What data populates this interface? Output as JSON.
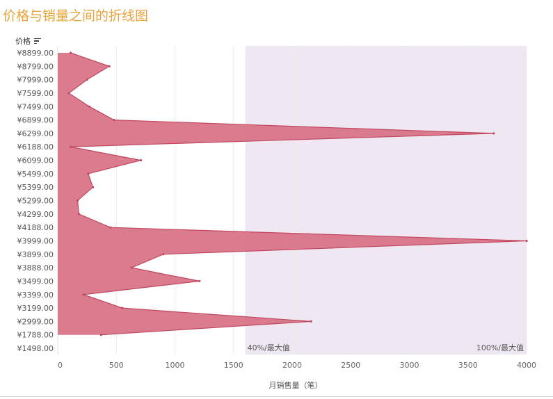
{
  "title": "价格与销量之间的折线图",
  "y_header": "价格",
  "x_axis_label": "月销售量（笔）",
  "colors": {
    "title": "#e8a33a",
    "area_fill": "#d87488",
    "area_line": "#c24760",
    "band": "#efe7f1",
    "grid": "#ececec"
  },
  "chart_data": {
    "type": "area",
    "orientation": "horizontal",
    "ylabel": "价格",
    "xlabel": "月销售量（笔）",
    "xlim": [
      0,
      4000
    ],
    "x_ticks": [
      0,
      500,
      1000,
      1500,
      2000,
      2500,
      3000,
      3500,
      4000
    ],
    "categories": [
      "¥8899.00",
      "¥8799.00",
      "¥7999.00",
      "¥7599.00",
      "¥7499.00",
      "¥6899.00",
      "¥6299.00",
      "¥6188.00",
      "¥6099.00",
      "¥5499.00",
      "¥5399.00",
      "¥5299.00",
      "¥4299.00",
      "¥4188.00",
      "¥3999.00",
      "¥3899.00",
      "¥3888.00",
      "¥3499.00",
      "¥3399.00",
      "¥3199.00",
      "¥2999.00",
      "¥1788.00",
      "¥1498.00"
    ],
    "values": [
      110,
      440,
      250,
      95,
      270,
      480,
      3720,
      110,
      710,
      260,
      300,
      170,
      180,
      450,
      4000,
      900,
      630,
      1210,
      220,
      550,
      2160,
      370,
      null
    ],
    "reference_band": {
      "from_label": "40%/最大值",
      "to_label": "100%/最大值",
      "from": 1600,
      "to": 4000
    },
    "grid": true
  }
}
